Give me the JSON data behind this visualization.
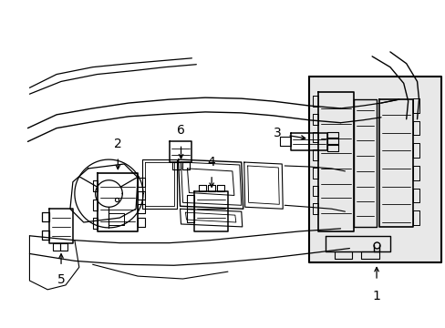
{
  "bg_color": "#ffffff",
  "line_color": "#000000",
  "label_color": "#000000",
  "figsize": [
    4.89,
    3.6
  ],
  "dpi": 100
}
